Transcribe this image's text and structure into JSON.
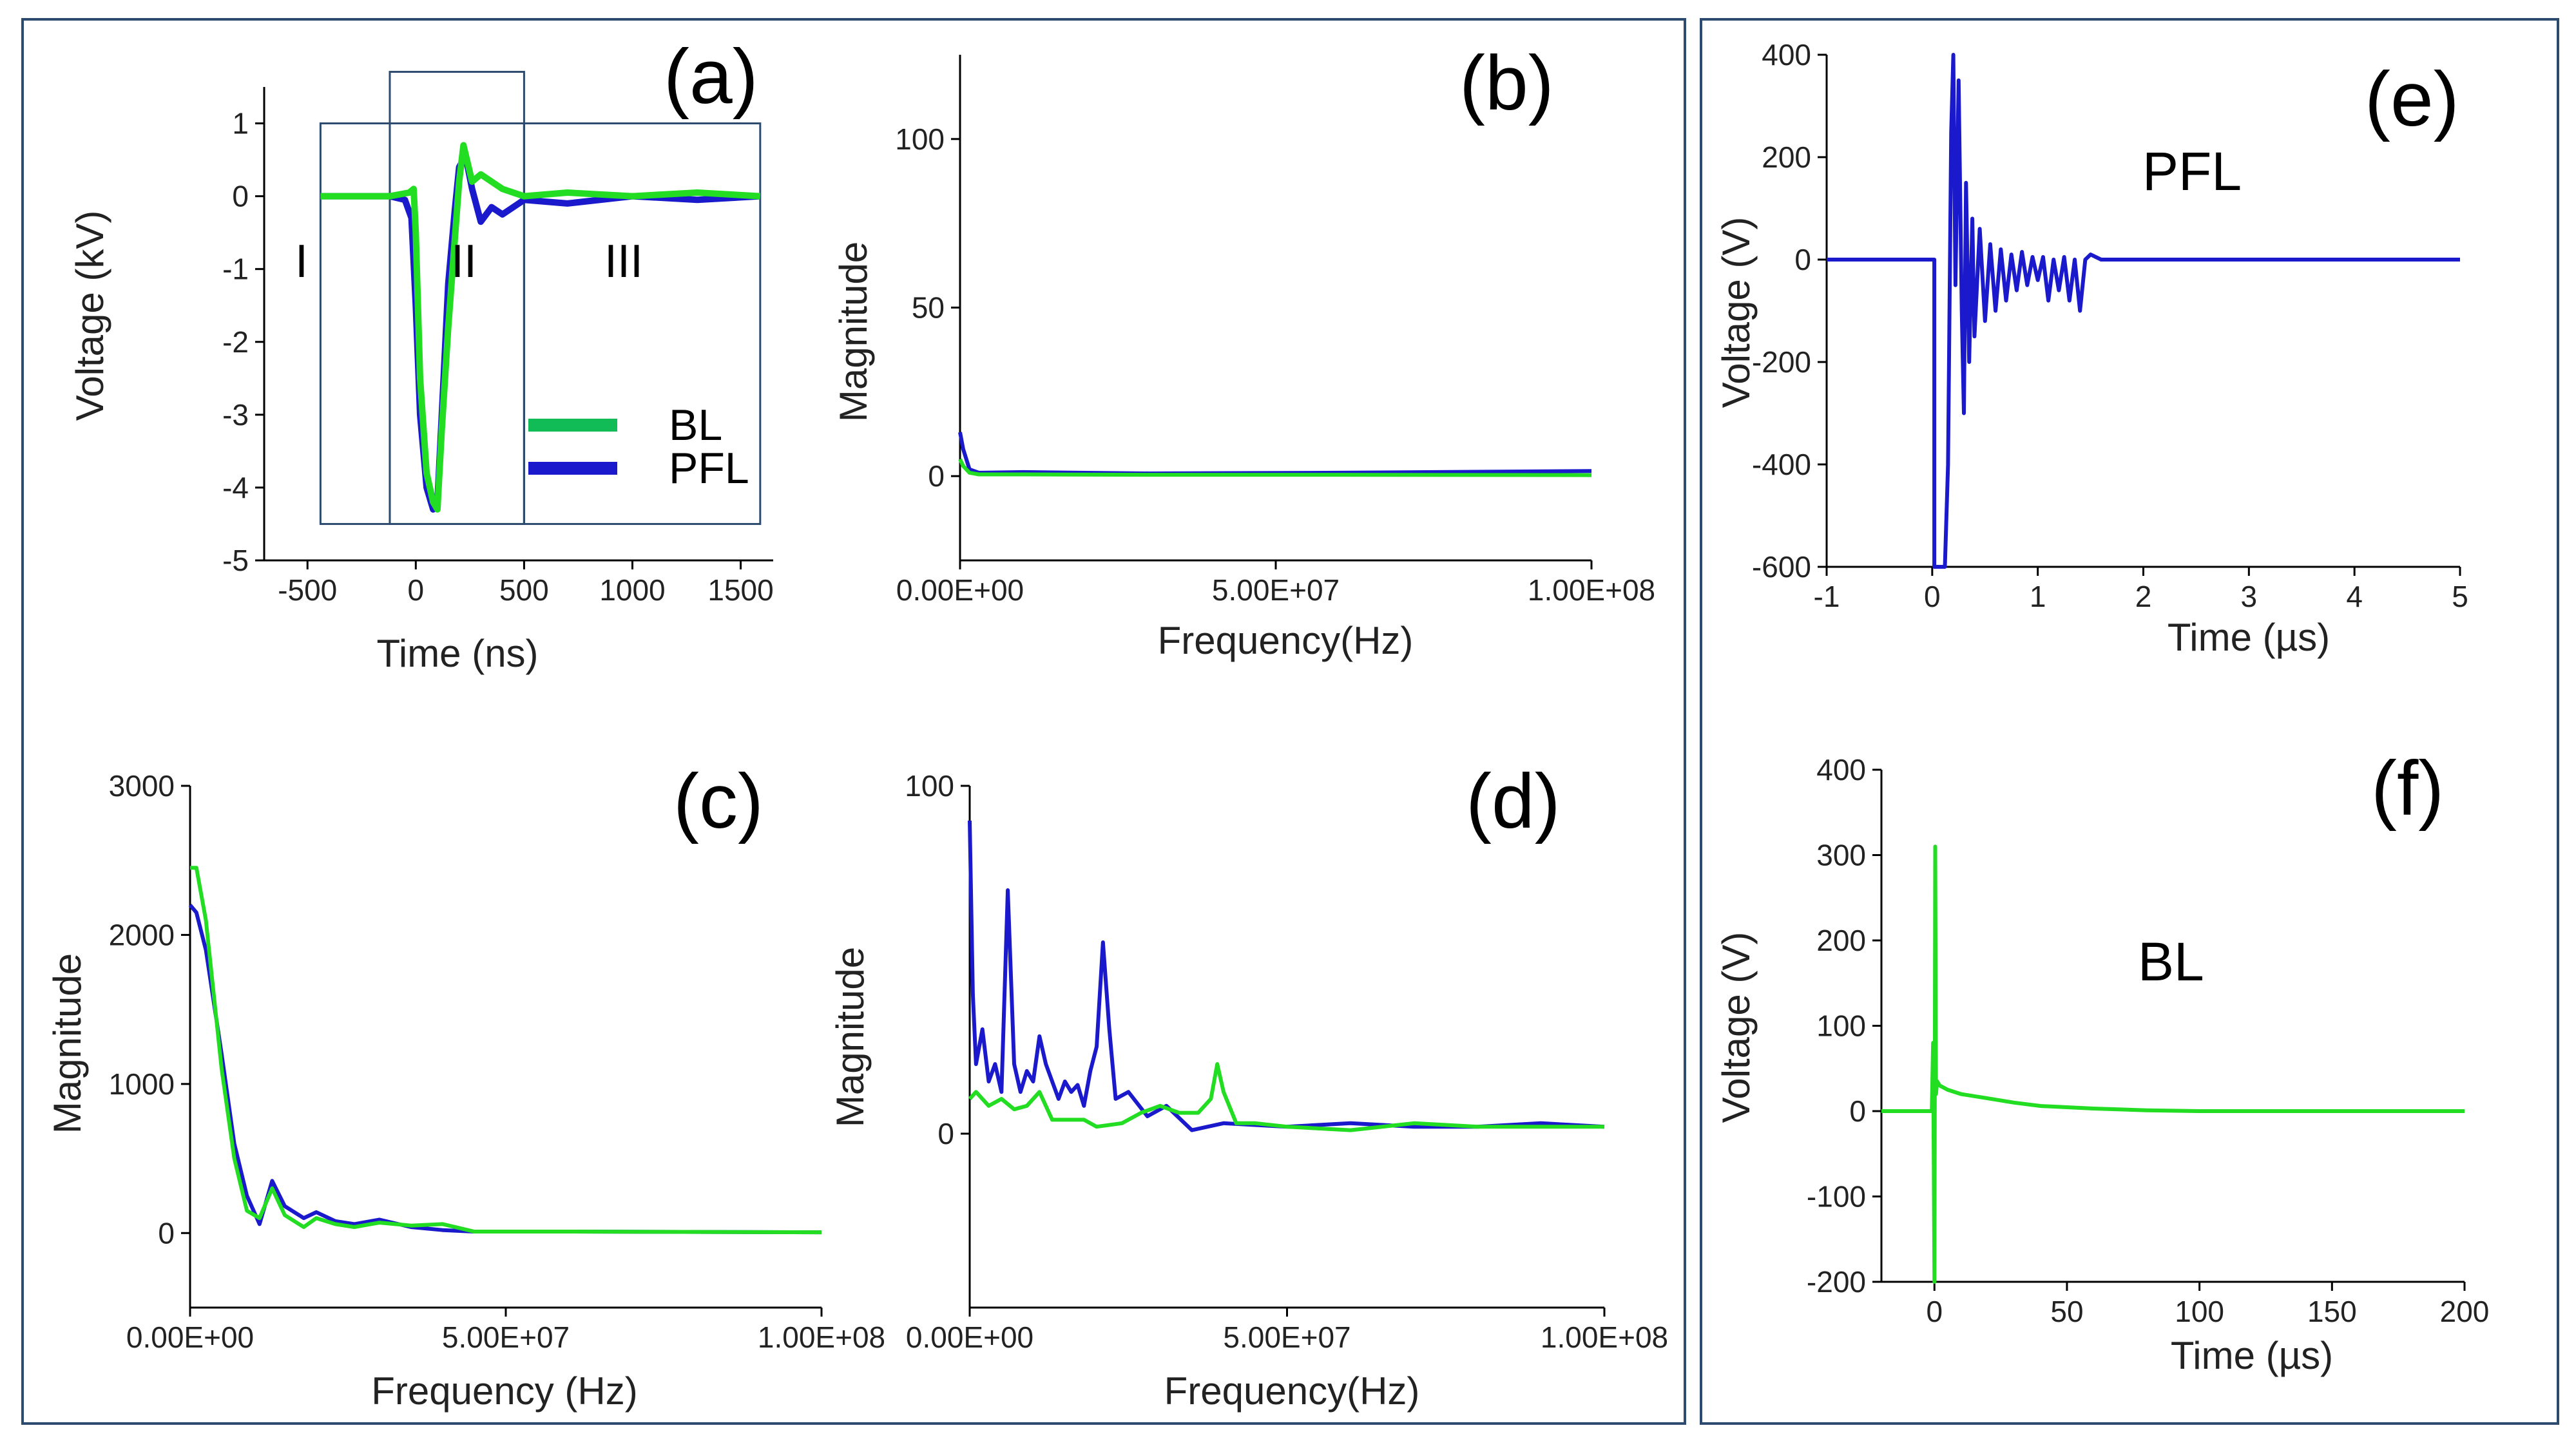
{
  "figure": {
    "colors": {
      "bl": "#22dd22",
      "pfl": "#1a1acc",
      "bl_legend": "#11bb55",
      "frame": "#2c4b6e"
    }
  },
  "chart_data": [
    {
      "id": "a",
      "panel_label": "(a)",
      "type": "line",
      "title": "",
      "xlabel": "Time (ns)",
      "ylabel": "Voltage (kV)",
      "xlim": [
        -700,
        1650
      ],
      "ylim": [
        -5,
        1.5
      ],
      "xticks": [
        -500,
        0,
        500,
        1000,
        1500
      ],
      "yticks": [
        -5,
        -4,
        -3,
        -2,
        -1,
        0,
        1
      ],
      "xtick_labels": [
        "-500",
        "0",
        "500",
        "1000",
        "1500"
      ],
      "ytick_labels": [
        "-5",
        "-4",
        "-3",
        "-2",
        "-1",
        "0",
        "1"
      ],
      "regions": [
        {
          "label": "I",
          "x_range": [
            -440,
            -120
          ]
        },
        {
          "label": "II",
          "x_range": [
            -120,
            500
          ]
        },
        {
          "label": "III",
          "x_range": [
            500,
            1590
          ]
        }
      ],
      "legend": {
        "placement": "lower-right",
        "entries": [
          "BL",
          "PFL"
        ]
      },
      "series": [
        {
          "name": "PFL",
          "color": "pfl",
          "x": [
            -440,
            -120,
            -50,
            -20,
            0,
            20,
            50,
            80,
            100,
            120,
            150,
            180,
            200,
            230,
            260,
            300,
            350,
            400,
            450,
            500,
            700,
            1000,
            1300,
            1590
          ],
          "y": [
            0,
            0,
            -0.05,
            -0.3,
            -1.5,
            -3.0,
            -4.0,
            -4.3,
            -4.2,
            -3.0,
            -1.2,
            -0.2,
            0.4,
            0.55,
            0.1,
            -0.35,
            -0.15,
            -0.25,
            -0.15,
            -0.05,
            -0.1,
            0.0,
            -0.05,
            0.0
          ]
        },
        {
          "name": "BL",
          "color": "bl",
          "x": [
            -440,
            -120,
            -30,
            -10,
            0,
            20,
            50,
            80,
            100,
            120,
            150,
            180,
            200,
            220,
            240,
            260,
            300,
            350,
            400,
            450,
            500,
            700,
            1000,
            1300,
            1590
          ],
          "y": [
            0.0,
            0.0,
            0.05,
            0.1,
            -0.5,
            -2.5,
            -3.8,
            -4.2,
            -4.3,
            -3.2,
            -1.8,
            -0.6,
            0.2,
            0.7,
            0.45,
            0.2,
            0.3,
            0.2,
            0.1,
            0.05,
            0.0,
            0.05,
            0.0,
            0.05,
            0.0
          ]
        }
      ]
    },
    {
      "id": "b",
      "panel_label": "(b)",
      "type": "line",
      "xlabel": "Frequency(Hz)",
      "ylabel": "Magnitude",
      "xlim": [
        0,
        100000000
      ],
      "ylim": [
        -25,
        125
      ],
      "xticks": [
        0,
        50000000,
        100000000
      ],
      "yticks": [
        0,
        50,
        100
      ],
      "xtick_labels": [
        "0.00E+00",
        "5.00E+07",
        "1.00E+08"
      ],
      "ytick_labels": [
        "0",
        "50",
        "100"
      ],
      "series": [
        {
          "name": "PFL",
          "color": "pfl",
          "x": [
            0,
            500000,
            1500000,
            3000000,
            10000000,
            30000000,
            60000000,
            100000000
          ],
          "y": [
            13,
            8,
            2,
            1,
            1.2,
            0.8,
            1.0,
            1.5
          ]
        },
        {
          "name": "BL",
          "color": "bl",
          "x": [
            0,
            500000,
            1500000,
            3000000,
            10000000,
            30000000,
            60000000,
            100000000
          ],
          "y": [
            5,
            3,
            1,
            0.5,
            0.5,
            0.4,
            0.4,
            0.3
          ]
        }
      ]
    },
    {
      "id": "c",
      "panel_label": "(c)",
      "type": "line",
      "xlabel": "Frequency (Hz)",
      "ylabel": "Magnitude",
      "xlim": [
        0,
        100000000
      ],
      "ylim": [
        -500,
        3000
      ],
      "xticks": [
        0,
        50000000,
        100000000
      ],
      "yticks": [
        0,
        1000,
        2000,
        3000
      ],
      "xtick_labels": [
        "0.00E+00",
        "5.00E+07",
        "1.00E+08"
      ],
      "ytick_labels": [
        "0",
        "1000",
        "2000",
        "3000"
      ],
      "series": [
        {
          "name": "PFL",
          "color": "pfl",
          "x": [
            0,
            1000000,
            2500000,
            5000000,
            7000000,
            9000000,
            11000000,
            13000000,
            15000000,
            18000000,
            20000000,
            23000000,
            26000000,
            30000000,
            35000000,
            40000000,
            45000000,
            60000000,
            100000000
          ],
          "y": [
            2200,
            2150,
            1900,
            1200,
            600,
            250,
            60,
            350,
            180,
            100,
            140,
            80,
            60,
            90,
            40,
            20,
            10,
            10,
            5
          ]
        },
        {
          "name": "BL",
          "color": "bl",
          "x": [
            0,
            1000000,
            2500000,
            5000000,
            7000000,
            9000000,
            11000000,
            13000000,
            15000000,
            18000000,
            20000000,
            23000000,
            26000000,
            30000000,
            35000000,
            40000000,
            45000000,
            60000000,
            100000000
          ],
          "y": [
            2450,
            2450,
            2100,
            1100,
            500,
            150,
            100,
            300,
            120,
            40,
            100,
            60,
            40,
            70,
            50,
            60,
            10,
            10,
            5
          ]
        }
      ]
    },
    {
      "id": "d",
      "panel_label": "(d)",
      "type": "line",
      "xlabel": "Frequency(Hz)",
      "ylabel": "Magnitude",
      "xlim": [
        0,
        100000000
      ],
      "ylim": [
        -50,
        100
      ],
      "xticks": [
        0,
        50000000,
        100000000
      ],
      "yticks": [
        0,
        100
      ],
      "xtick_labels": [
        "0.00E+00",
        "5.00E+07",
        "1.00E+08"
      ],
      "ytick_labels": [
        "0",
        "100"
      ],
      "series": [
        {
          "name": "PFL",
          "color": "pfl",
          "x": [
            0,
            500000,
            1000000,
            2000000,
            3000000,
            4000000,
            5000000,
            6000000,
            7000000,
            8000000,
            9000000,
            10000000,
            11000000,
            12000000,
            14000000,
            15000000,
            16000000,
            17000000,
            18000000,
            19000000,
            20000000,
            21000000,
            22000000,
            23000000,
            25000000,
            28000000,
            31000000,
            35000000,
            40000000,
            50000000,
            60000000,
            70000000,
            80000000,
            90000000,
            100000000
          ],
          "y": [
            90,
            40,
            20,
            30,
            15,
            20,
            12,
            70,
            20,
            12,
            18,
            15,
            28,
            20,
            10,
            15,
            12,
            14,
            8,
            18,
            25,
            55,
            30,
            10,
            12,
            5,
            8,
            1,
            3,
            2,
            3,
            2,
            2,
            3,
            2
          ]
        },
        {
          "name": "BL",
          "color": "bl",
          "x": [
            0,
            1000000,
            3000000,
            5000000,
            7000000,
            9000000,
            11000000,
            13000000,
            15000000,
            18000000,
            20000000,
            24000000,
            27000000,
            30000000,
            33000000,
            36000000,
            38000000,
            39000000,
            40000000,
            42000000,
            45000000,
            50000000,
            60000000,
            70000000,
            80000000,
            90000000,
            100000000
          ],
          "y": [
            10,
            12,
            8,
            10,
            7,
            8,
            12,
            4,
            4,
            4,
            2,
            3,
            6,
            8,
            6,
            6,
            10,
            20,
            12,
            3,
            3,
            2,
            1,
            3,
            2,
            2,
            2
          ]
        }
      ]
    },
    {
      "id": "e",
      "panel_label": "(e)",
      "type": "line",
      "annotation": "PFL",
      "xlabel": "Time (µs)",
      "ylabel": "Voltage (V)",
      "xlim": [
        -1,
        5
      ],
      "ylim": [
        -600,
        400
      ],
      "xticks": [
        -1,
        0,
        1,
        2,
        3,
        4,
        5
      ],
      "yticks": [
        -600,
        -400,
        -200,
        0,
        200,
        400
      ],
      "xtick_labels": [
        "-1",
        "0",
        "1",
        "2",
        "3",
        "4",
        "5"
      ],
      "ytick_labels": [
        "-600",
        "-400",
        "-200",
        "0",
        "200",
        "400"
      ],
      "series": [
        {
          "name": "PFL",
          "color": "pfl",
          "x": [
            -1,
            0.0,
            0.02,
            0.02,
            0.03,
            0.12,
            0.15,
            0.18,
            0.2,
            0.22,
            0.25,
            0.28,
            0.3,
            0.32,
            0.35,
            0.38,
            0.4,
            0.45,
            0.5,
            0.55,
            0.6,
            0.65,
            0.7,
            0.75,
            0.8,
            0.85,
            0.9,
            0.95,
            1.0,
            1.05,
            1.1,
            1.15,
            1.2,
            1.25,
            1.3,
            1.35,
            1.4,
            1.45,
            1.5,
            1.6,
            2,
            3,
            4,
            5
          ],
          "y": [
            0,
            0,
            0,
            -600,
            -600,
            -600,
            -400,
            250,
            400,
            -50,
            350,
            -100,
            -300,
            150,
            -200,
            80,
            -150,
            60,
            -120,
            30,
            -100,
            20,
            -80,
            10,
            -60,
            15,
            -50,
            5,
            -40,
            5,
            -80,
            0,
            -60,
            5,
            -80,
            0,
            -100,
            0,
            10,
            0,
            0,
            0,
            0,
            0
          ]
        }
      ]
    },
    {
      "id": "f",
      "panel_label": "(f)",
      "type": "line",
      "annotation": "BL",
      "xlabel": "Time (µs)",
      "ylabel": "Voltage (V)",
      "xlim": [
        -20,
        200
      ],
      "ylim": [
        -200,
        400
      ],
      "xticks": [
        0,
        50,
        100,
        150,
        200
      ],
      "yticks": [
        -200,
        -100,
        0,
        100,
        200,
        300,
        400
      ],
      "xtick_labels": [
        "0",
        "50",
        "100",
        "150",
        "200"
      ],
      "ytick_labels": [
        "-200",
        "-100",
        "0",
        "100",
        "200",
        "300",
        "400"
      ],
      "series": [
        {
          "name": "BL",
          "color": "bl",
          "x": [
            -20,
            -1,
            -0.5,
            0,
            0.3,
            0.6,
            1.0,
            2,
            5,
            10,
            20,
            30,
            40,
            60,
            80,
            100,
            150,
            200
          ],
          "y": [
            0,
            0,
            80,
            -200,
            310,
            20,
            35,
            30,
            25,
            20,
            15,
            10,
            6,
            3,
            1,
            0,
            0,
            0
          ]
        }
      ]
    }
  ]
}
